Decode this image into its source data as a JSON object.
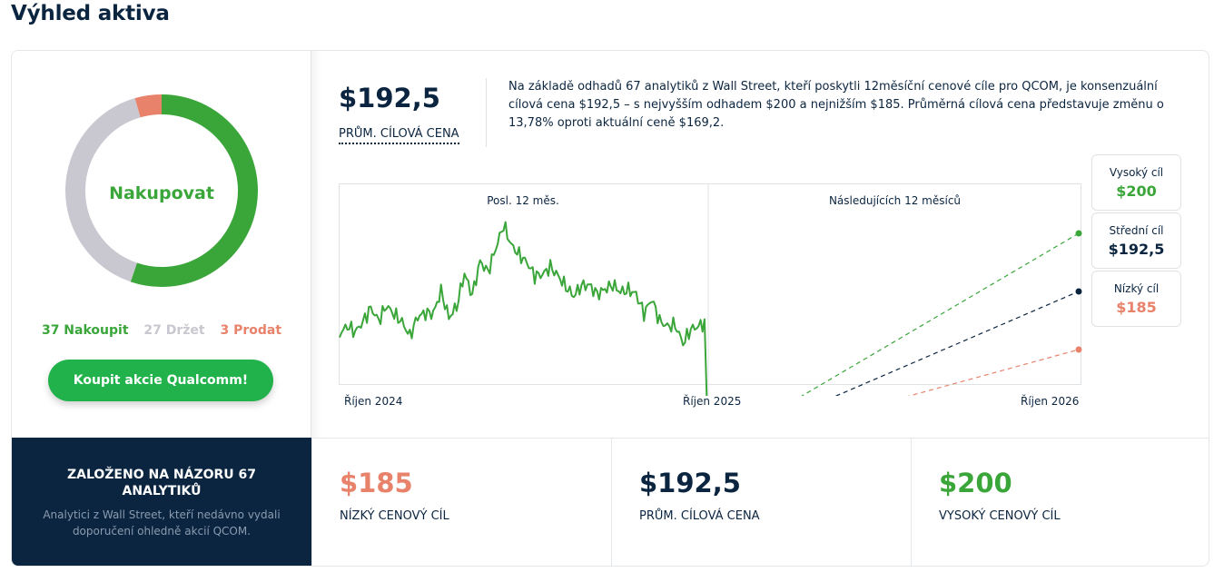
{
  "page_title": "Výhled aktiva",
  "rating": {
    "label": "Nakupovat",
    "buy_count": 37,
    "hold_count": 27,
    "sell_count": 3,
    "buy_text": "37 Nakoupit",
    "hold_text": "27 Držet",
    "sell_text": "3 Prodat",
    "colors": {
      "buy": "#3aa63a",
      "hold": "#c9c7cf",
      "sell": "#e8826a"
    }
  },
  "cta_label": "Koupit akcie Qualcomm!",
  "summary": {
    "avg_price": "$192,5",
    "avg_label": "PRŮM. CÍLOVÁ CENA",
    "text": "Na základě odhadů 67 analytiků z Wall Street, kteří poskytli 12měsíční cenové cíle pro QCOM, je konsenzuální cílová cena $192,5 – s nejvyšším odhadem $200 a nejnižším $185. Průměrná cílová cena představuje změnu o 13,78% oproti aktuální ceně $169,2."
  },
  "chart": {
    "period_left": "Posl. 12 měs.",
    "period_right": "Následujících 12 měsíců",
    "x_ticks": [
      "Říjen 2024",
      "Říjen 2025",
      "Říjen 2026"
    ],
    "colors": {
      "history": "#3aa63a",
      "high": "#3aa63a",
      "avg": "#0b2540",
      "low": "#e8826a"
    }
  },
  "chart_data": {
    "type": "line",
    "x_ticks": [
      "Říjen 2024",
      "Říjen 2025",
      "Říjen 2026"
    ],
    "history_seed": [
      0.08,
      0.12,
      0.03,
      0.18,
      0.26,
      0.15,
      0.3,
      0.22,
      0.12,
      0.06,
      0.18,
      0.2,
      0.28,
      0.35,
      0.22,
      0.3,
      0.5,
      0.46,
      0.62,
      0.58,
      0.83,
      0.92,
      0.86,
      0.72,
      0.64,
      0.58,
      0.54,
      0.62,
      0.56,
      0.45,
      0.35,
      0.5,
      0.44,
      0.38,
      0.48,
      0.4,
      0.46,
      0.42,
      0.34,
      0.3,
      0.28,
      0.18,
      0.14,
      0.06,
      0.02,
      0.06,
      0.1,
      0.18
    ],
    "history_end": 169.2,
    "targets": [
      {
        "key": "high",
        "label": "Vysoký cíl",
        "value": 200,
        "display": "$200"
      },
      {
        "key": "avg",
        "label": "Střední cíl",
        "value": 192.5,
        "display": "$192,5"
      },
      {
        "key": "low",
        "label": "Nízký cíl",
        "value": 185,
        "display": "$185"
      }
    ]
  },
  "bottom": {
    "title": "ZALOŽENO NA NÁZORU 67 ANALYTIKŮ",
    "subtitle": "Analytici z Wall Street, kteří nedávno vydali doporučení ohledně akcií QCOM.",
    "low": {
      "value": "$185",
      "label": "NÍZKÝ CENOVÝ CÍL"
    },
    "avg": {
      "value": "$192,5",
      "label": "PRŮM. CÍLOVÁ CENA"
    },
    "high": {
      "value": "$200",
      "label": "VYSOKÝ CENOVÝ CÍL"
    }
  }
}
